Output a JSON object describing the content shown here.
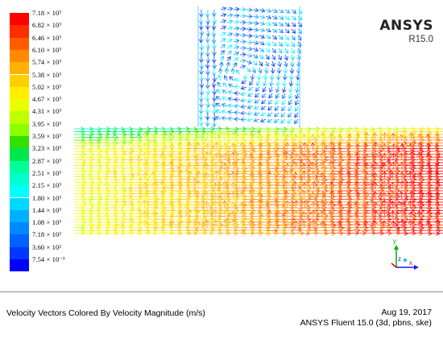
{
  "brand": {
    "name": "ANSYS",
    "version": "R15.0"
  },
  "legend": {
    "labels": [
      "7.18 × 10³",
      "6.82 × 10³",
      "6.46 × 10³",
      "6.10 × 10³",
      "5.74 × 10³",
      "5.38 × 10³",
      "5.02 × 10³",
      "4.67 × 10³",
      "4.31 × 10³",
      "3.95 × 10³",
      "3.59 × 10³",
      "3.23 × 10³",
      "2.87 × 10³",
      "2.51 × 10³",
      "2.15 × 10³",
      "1.80 × 10³",
      "1.44 × 10³",
      "1.08 × 10³",
      "7.18 × 10²",
      "3.60 × 10²",
      "7.54 × 10⁻³"
    ],
    "colors": [
      "#ff0000",
      "#ff2e00",
      "#ff5c00",
      "#ff8a00",
      "#ffb000",
      "#ffd000",
      "#ffee00",
      "#e8ff00",
      "#bfff00",
      "#8cff00",
      "#34e000",
      "#00e84e",
      "#00ff9a",
      "#00ffcc",
      "#00ffff",
      "#00d9ff",
      "#00b0ff",
      "#0088ff",
      "#0062ff",
      "#0038ff",
      "#0000ff"
    ]
  },
  "caption": "Velocity Vectors Colored By Velocity Magnitude (m/s)",
  "date": "Aug 19, 2017",
  "solver": "ANSYS Fluent 15.0 (3d, pbns, ske)",
  "triad": {
    "x": "x",
    "y": "y",
    "z": "z"
  }
}
